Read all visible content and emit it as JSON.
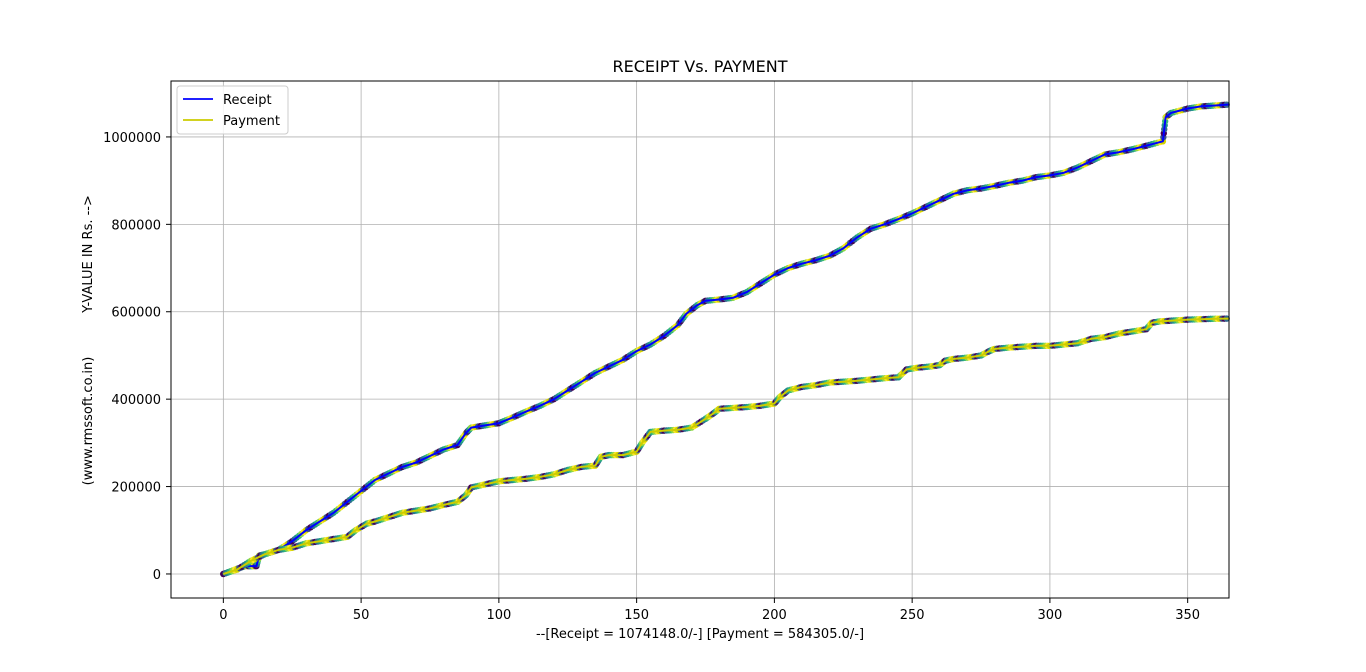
{
  "chart_data": {
    "type": "line",
    "title": "RECEIPT Vs. PAYMENT",
    "xlabel": "--[Receipt = 1074148.0/-] [Payment = 584305.0/-]",
    "ylabel_lines": [
      "Y-VALUE IN Rs. -->",
      "(www.rmssoft.co.in)"
    ],
    "xlim": [
      -19,
      365
    ],
    "ylim": [
      -55000,
      1128000
    ],
    "xticks": [
      0,
      50,
      100,
      150,
      200,
      250,
      300,
      350
    ],
    "yticks": [
      0,
      200000,
      400000,
      600000,
      800000,
      1000000
    ],
    "xtick_labels": [
      "0",
      "50",
      "100",
      "150",
      "200",
      "250",
      "300",
      "350"
    ],
    "ytick_labels": [
      "0",
      "200000",
      "400000",
      "600000",
      "800000",
      "1000000"
    ],
    "grid": true,
    "legend_position": "upper-left",
    "series": [
      {
        "name": "Receipt",
        "color": "#0000ff",
        "x": [
          0,
          5,
          8,
          10,
          12,
          13,
          15,
          20,
          25,
          30,
          35,
          40,
          45,
          50,
          55,
          60,
          65,
          70,
          75,
          80,
          85,
          88,
          90,
          95,
          100,
          105,
          110,
          115,
          120,
          125,
          130,
          135,
          140,
          145,
          150,
          155,
          160,
          165,
          168,
          172,
          175,
          180,
          185,
          190,
          195,
          200,
          205,
          210,
          215,
          220,
          225,
          230,
          235,
          240,
          245,
          250,
          255,
          260,
          265,
          270,
          275,
          280,
          285,
          290,
          295,
          300,
          305,
          310,
          315,
          320,
          325,
          330,
          335,
          341,
          342,
          344,
          350,
          355,
          360,
          365
        ],
        "y": [
          0,
          12000,
          18000,
          18000,
          18000,
          42000,
          45000,
          55000,
          75000,
          100000,
          120000,
          140000,
          165000,
          190000,
          215000,
          230000,
          245000,
          255000,
          270000,
          285000,
          295000,
          322000,
          335000,
          340000,
          345000,
          358000,
          372000,
          385000,
          400000,
          420000,
          440000,
          460000,
          475000,
          490000,
          510000,
          525000,
          545000,
          570000,
          595000,
          615000,
          625000,
          628000,
          632000,
          645000,
          665000,
          685000,
          700000,
          710000,
          718000,
          728000,
          745000,
          770000,
          790000,
          800000,
          812000,
          825000,
          840000,
          855000,
          870000,
          878000,
          882000,
          888000,
          895000,
          900000,
          908000,
          912000,
          918000,
          930000,
          945000,
          960000,
          965000,
          972000,
          980000,
          990000,
          1045000,
          1055000,
          1065000,
          1070000,
          1072000,
          1074148
        ]
      },
      {
        "name": "Payment",
        "color": "#cccc00",
        "x": [
          0,
          5,
          10,
          15,
          20,
          25,
          30,
          35,
          40,
          45,
          48,
          52,
          55,
          60,
          65,
          70,
          75,
          80,
          85,
          88,
          90,
          95,
          100,
          105,
          110,
          115,
          120,
          125,
          130,
          135,
          137,
          140,
          145,
          150,
          152,
          155,
          160,
          165,
          170,
          175,
          178,
          180,
          185,
          190,
          195,
          200,
          202,
          205,
          210,
          215,
          220,
          225,
          230,
          235,
          240,
          245,
          248,
          252,
          257,
          260,
          262,
          265,
          270,
          275,
          278,
          280,
          285,
          290,
          295,
          300,
          305,
          310,
          315,
          320,
          325,
          330,
          335,
          337,
          340,
          345,
          350,
          355,
          360,
          365
        ],
        "y": [
          0,
          10000,
          30000,
          45000,
          55000,
          60000,
          70000,
          75000,
          80000,
          85000,
          100000,
          115000,
          120000,
          130000,
          140000,
          145000,
          150000,
          158000,
          165000,
          180000,
          198000,
          205000,
          212000,
          215000,
          218000,
          222000,
          228000,
          238000,
          245000,
          248000,
          268000,
          272000,
          272000,
          280000,
          300000,
          325000,
          328000,
          330000,
          335000,
          355000,
          368000,
          378000,
          380000,
          382000,
          385000,
          390000,
          405000,
          420000,
          428000,
          432000,
          438000,
          440000,
          442000,
          445000,
          448000,
          450000,
          468000,
          472000,
          475000,
          478000,
          488000,
          492000,
          495000,
          500000,
          510000,
          515000,
          518000,
          520000,
          522000,
          522000,
          525000,
          528000,
          538000,
          542000,
          550000,
          555000,
          560000,
          575000,
          578000,
          580000,
          582000,
          583000,
          584000,
          584305
        ]
      }
    ]
  }
}
